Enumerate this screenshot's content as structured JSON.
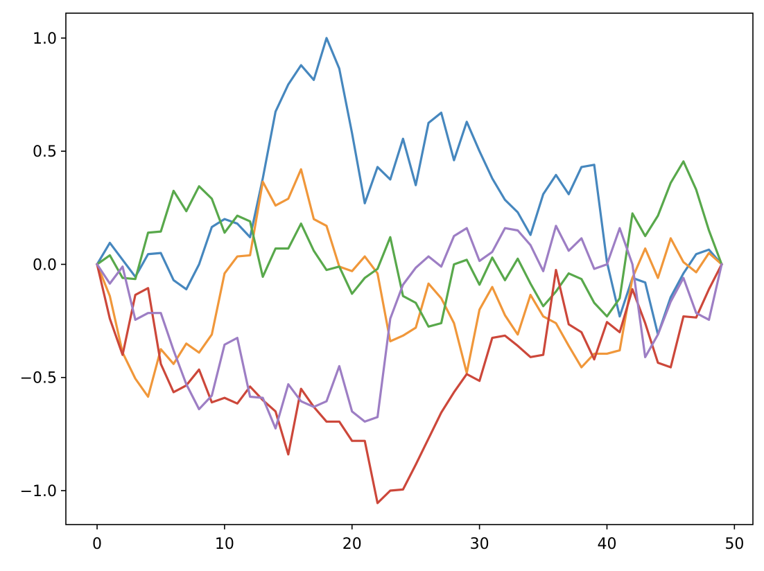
{
  "chart_data": {
    "type": "line",
    "title": "",
    "xlabel": "",
    "ylabel": "",
    "xlim": [
      -2.45,
      51.45
    ],
    "ylim": [
      -1.15,
      1.11
    ],
    "grid": false,
    "legend": "none",
    "x_ticks": [
      {
        "value": 0,
        "label": "0"
      },
      {
        "value": 10,
        "label": "10"
      },
      {
        "value": 20,
        "label": "20"
      },
      {
        "value": 30,
        "label": "30"
      },
      {
        "value": 40,
        "label": "40"
      },
      {
        "value": 50,
        "label": "50"
      }
    ],
    "y_ticks": [
      {
        "value": -1.0,
        "label": "−1.0"
      },
      {
        "value": -0.5,
        "label": "−0.5"
      },
      {
        "value": 0.0,
        "label": "0.0"
      },
      {
        "value": 0.5,
        "label": "0.5"
      },
      {
        "value": 1.0,
        "label": "1.0"
      }
    ],
    "x": [
      0,
      1,
      2,
      3,
      4,
      5,
      6,
      7,
      8,
      9,
      10,
      11,
      12,
      13,
      14,
      15,
      16,
      17,
      18,
      19,
      20,
      21,
      22,
      23,
      24,
      25,
      26,
      27,
      28,
      29,
      30,
      31,
      32,
      33,
      34,
      35,
      36,
      37,
      38,
      39,
      40,
      41,
      42,
      43,
      44,
      45,
      46,
      47,
      48,
      49
    ],
    "series": [
      {
        "color": "#4687be",
        "values": [
          0.0,
          0.095,
          0.02,
          -0.055,
          0.045,
          0.05,
          -0.07,
          -0.11,
          0.0,
          0.165,
          0.2,
          0.18,
          0.12,
          0.38,
          0.675,
          0.795,
          0.88,
          0.815,
          1.0,
          0.865,
          0.58,
          0.27,
          0.43,
          0.375,
          0.555,
          0.35,
          0.625,
          0.67,
          0.46,
          0.63,
          0.5,
          0.38,
          0.285,
          0.23,
          0.13,
          0.31,
          0.395,
          0.31,
          0.43,
          0.44,
          0.01,
          -0.23,
          -0.06,
          -0.08,
          -0.31,
          -0.145,
          -0.04,
          0.045,
          0.065,
          0.0
        ]
      },
      {
        "color": "#f0973a",
        "values": [
          0.0,
          -0.14,
          -0.39,
          -0.505,
          -0.585,
          -0.375,
          -0.44,
          -0.35,
          -0.39,
          -0.31,
          -0.04,
          0.035,
          0.04,
          0.365,
          0.26,
          0.29,
          0.42,
          0.2,
          0.17,
          -0.01,
          -0.03,
          0.035,
          -0.04,
          -0.34,
          -0.315,
          -0.28,
          -0.085,
          -0.15,
          -0.26,
          -0.48,
          -0.2,
          -0.1,
          -0.225,
          -0.31,
          -0.135,
          -0.23,
          -0.26,
          -0.36,
          -0.455,
          -0.395,
          -0.395,
          -0.38,
          -0.06,
          0.07,
          -0.06,
          0.115,
          0.01,
          -0.035,
          0.05,
          0.0
        ]
      },
      {
        "color": "#58a84b",
        "values": [
          0.0,
          0.04,
          -0.06,
          -0.065,
          0.14,
          0.145,
          0.325,
          0.235,
          0.345,
          0.29,
          0.14,
          0.215,
          0.19,
          -0.055,
          0.07,
          0.07,
          0.18,
          0.06,
          -0.025,
          -0.01,
          -0.13,
          -0.06,
          -0.02,
          0.12,
          -0.14,
          -0.17,
          -0.275,
          -0.26,
          0.0,
          0.02,
          -0.09,
          0.03,
          -0.07,
          0.025,
          -0.085,
          -0.185,
          -0.12,
          -0.04,
          -0.065,
          -0.17,
          -0.23,
          -0.15,
          0.225,
          0.125,
          0.215,
          0.36,
          0.455,
          0.33,
          0.15,
          0.0
        ]
      },
      {
        "color": "#cc473a",
        "values": [
          0.0,
          -0.24,
          -0.4,
          -0.135,
          -0.105,
          -0.44,
          -0.565,
          -0.535,
          -0.465,
          -0.61,
          -0.59,
          -0.615,
          -0.54,
          -0.6,
          -0.65,
          -0.84,
          -0.55,
          -0.63,
          -0.695,
          -0.695,
          -0.78,
          -0.78,
          -1.055,
          -1.0,
          -0.995,
          -0.885,
          -0.77,
          -0.655,
          -0.565,
          -0.485,
          -0.515,
          -0.325,
          -0.315,
          -0.36,
          -0.41,
          -0.4,
          -0.025,
          -0.265,
          -0.3,
          -0.42,
          -0.255,
          -0.3,
          -0.11,
          -0.26,
          -0.435,
          -0.455,
          -0.23,
          -0.235,
          -0.11,
          0.0
        ]
      },
      {
        "color": "#9d7ec4",
        "values": [
          0.0,
          -0.085,
          -0.01,
          -0.245,
          -0.215,
          -0.215,
          -0.38,
          -0.53,
          -0.64,
          -0.58,
          -0.355,
          -0.325,
          -0.585,
          -0.59,
          -0.725,
          -0.53,
          -0.605,
          -0.63,
          -0.605,
          -0.45,
          -0.65,
          -0.695,
          -0.675,
          -0.24,
          -0.09,
          -0.015,
          0.035,
          -0.01,
          0.125,
          0.16,
          0.015,
          0.055,
          0.16,
          0.15,
          0.085,
          -0.03,
          0.17,
          0.06,
          0.115,
          -0.02,
          0.0,
          0.16,
          0.0,
          -0.41,
          -0.31,
          -0.165,
          -0.06,
          -0.215,
          -0.245,
          0.0
        ]
      }
    ]
  }
}
